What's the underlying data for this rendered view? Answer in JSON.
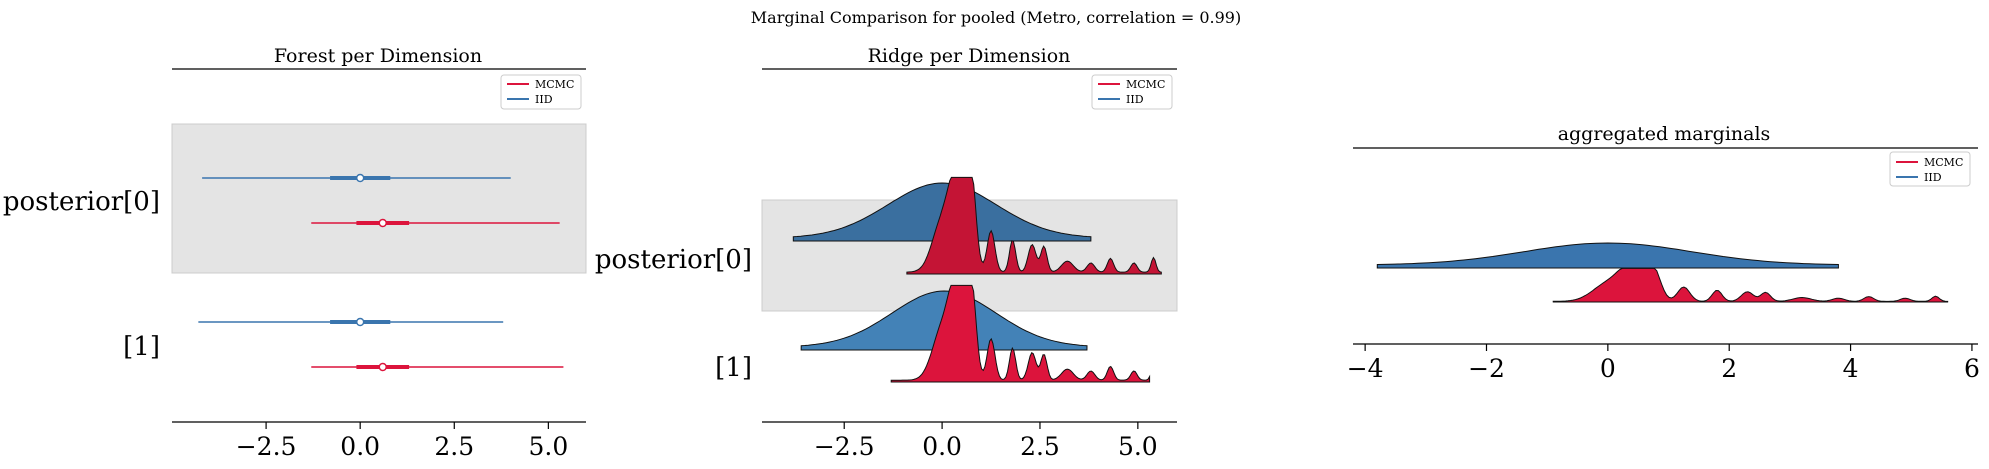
{
  "suptitle": "Marginal Comparison for pooled (Metro, correlation = 0.99)",
  "colors": {
    "mcmc": "#dc143c",
    "iid": "#3a75ae",
    "band": "#e4e4e4"
  },
  "legend": {
    "mcmc": "MCMC",
    "iid": "IID"
  },
  "chart_data": [
    {
      "type": "forest",
      "title": "Forest per Dimension",
      "xticks": [
        -2.5,
        0.0,
        2.5,
        5.0
      ],
      "xtick_labels": [
        "−2.5",
        "0.0",
        "2.5",
        "5.0"
      ],
      "xlim": [
        -5.0,
        6.0
      ],
      "rows": [
        {
          "label": "posterior[0]",
          "shaded": true,
          "iid": {
            "hdi": [
              -4.2,
              4.0
            ],
            "iqr": [
              -0.8,
              0.8
            ],
            "median": 0.0
          },
          "mcmc": {
            "hdi": [
              -1.3,
              5.3
            ],
            "iqr": [
              -0.1,
              1.3
            ],
            "median": 0.6
          }
        },
        {
          "label": "[1]",
          "shaded": false,
          "iid": {
            "hdi": [
              -4.3,
              3.8
            ],
            "iqr": [
              -0.8,
              0.8
            ],
            "median": 0.0
          },
          "mcmc": {
            "hdi": [
              -1.3,
              5.4
            ],
            "iqr": [
              -0.1,
              1.3
            ],
            "median": 0.6
          }
        }
      ]
    },
    {
      "type": "ridge",
      "title": "Ridge per Dimension",
      "xticks": [
        -2.5,
        0.0,
        2.5,
        5.0
      ],
      "xtick_labels": [
        "−2.5",
        "0.0",
        "2.5",
        "5.0"
      ],
      "xlim": [
        -4.6,
        6.0
      ],
      "rows": [
        {
          "label": "posterior[0]",
          "shaded": true,
          "iid": {
            "range": [
              -3.8,
              3.8
            ]
          },
          "mcmc": {
            "range": [
              -0.9,
              5.6
            ]
          }
        },
        {
          "label": "[1]",
          "shaded": false,
          "iid": {
            "range": [
              -3.6,
              3.7
            ]
          },
          "mcmc": {
            "range": [
              -1.3,
              5.3
            ]
          }
        }
      ]
    },
    {
      "type": "ridge",
      "title": "aggregated marginals",
      "xticks": [
        -4,
        -2,
        0,
        2,
        4,
        6
      ],
      "xtick_labels": [
        "−4",
        "−2",
        "0",
        "2",
        "4",
        "6"
      ],
      "xlim": [
        -4.2,
        6.1
      ],
      "rows": [
        {
          "label": "",
          "shaded": false,
          "iid": {
            "range": [
              -3.8,
              3.8
            ]
          },
          "mcmc": {
            "range": [
              -0.9,
              5.6
            ]
          }
        }
      ]
    }
  ]
}
